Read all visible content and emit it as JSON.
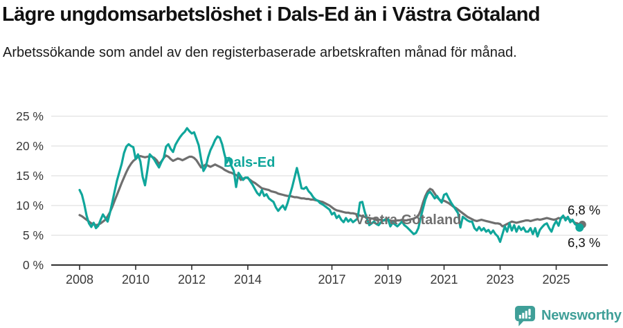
{
  "title": "Lägre ungdomsarbetslöshet i Dals-Ed än i Västra Götaland",
  "subtitle": "Arbetssökande som andel av den registerbaserade arbetskraften månad för månad.",
  "y_axis": {
    "values": [
      0,
      5,
      10,
      15,
      20,
      25
    ],
    "labels": [
      "0 %",
      "5 %",
      "10 %",
      "15 %",
      "20 %",
      "25 %"
    ]
  },
  "x_axis": {
    "years": [
      2008,
      2010,
      2012,
      2014,
      2017,
      2019,
      2021,
      2023,
      2025
    ],
    "labels": [
      "2008",
      "2010",
      "2012",
      "2014",
      "2017",
      "2019",
      "2021",
      "2023",
      "2025"
    ]
  },
  "annotations": {
    "series_label_dals_ed": "Dals-Ed",
    "series_label_vastra_gotaland": "Västra Götaland",
    "end_value_vastra_gotaland": "6,8 %",
    "end_value_dals_ed": "6,3 %"
  },
  "footer": {
    "brand": "Newsworthy",
    "icon": "newsworthy-chart-bubble-icon"
  },
  "colors": {
    "teal_line": "#10a69b",
    "gray_line": "#6f6f6f",
    "gridline": "#d9d9d9",
    "axis": "#2e2e2e",
    "tick_text": "#383838",
    "annotation_text": "#111111",
    "brand_teal": "#3f9f98"
  },
  "chart_data": {
    "type": "line",
    "title": "Lägre ungdomsarbetslöshet i Dals-Ed än i Västra Götaland",
    "unit": "%",
    "frequency": "monthly",
    "start": "2008-01",
    "end": "2025-11",
    "ylim": [
      0,
      25
    ],
    "grid": true,
    "x_tick_years": [
      2008,
      2010,
      2012,
      2014,
      2017,
      2019,
      2021,
      2023,
      2025
    ],
    "series": [
      {
        "name": "Dals-Ed",
        "color": "#10a69b",
        "end_label": "6,3 %",
        "values": [
          12.6,
          11.8,
          10.2,
          8.3,
          7.0,
          6.4,
          7.1,
          6.2,
          6.6,
          7.6,
          8.5,
          7.9,
          7.3,
          8.8,
          10.6,
          12.4,
          14.2,
          15.6,
          17.0,
          18.8,
          19.9,
          20.3,
          20.0,
          19.8,
          17.8,
          18.6,
          17.4,
          14.8,
          13.4,
          15.9,
          18.6,
          18.2,
          17.7,
          17.0,
          16.4,
          17.3,
          18.0,
          19.9,
          20.3,
          19.5,
          19.0,
          20.2,
          20.9,
          21.5,
          22.0,
          22.4,
          23.0,
          22.5,
          22.1,
          22.3,
          21.2,
          20.1,
          17.8,
          15.8,
          16.5,
          18.1,
          19.3,
          20.1,
          21.0,
          21.6,
          21.4,
          20.3,
          18.6,
          17.2,
          18.0,
          16.6,
          15.8,
          13.1,
          15.5,
          14.9,
          14.3,
          14.7,
          14.7,
          14.1,
          13.5,
          12.8,
          12.1,
          11.7,
          12.6,
          11.6,
          11.9,
          11.2,
          10.9,
          10.6,
          9.7,
          9.1,
          9.6,
          10.0,
          9.3,
          10.4,
          11.8,
          13.1,
          14.7,
          16.3,
          14.7,
          12.9,
          12.8,
          13.1,
          12.4,
          12.0,
          11.4,
          11.0,
          10.8,
          10.4,
          10.2,
          9.9,
          9.6,
          9.3,
          8.5,
          8.8,
          7.9,
          8.3,
          7.6,
          7.2,
          7.9,
          7.3,
          7.7,
          7.2,
          7.5,
          7.8,
          10.5,
          10.6,
          9.0,
          7.8,
          6.7,
          7.0,
          7.3,
          6.9,
          6.7,
          7.2,
          7.5,
          7.7,
          7.7,
          6.5,
          7.1,
          6.8,
          6.5,
          6.9,
          7.3,
          6.7,
          6.4,
          6.0,
          5.6,
          5.2,
          5.4,
          6.2,
          8.0,
          9.5,
          11.0,
          12.0,
          12.3,
          11.8,
          11.2,
          11.6,
          11.0,
          10.5,
          11.8,
          12.0,
          11.2,
          10.5,
          9.9,
          9.3,
          8.7,
          6.3,
          8.1,
          7.8,
          7.5,
          7.3,
          7.3,
          6.2,
          5.8,
          6.4,
          5.8,
          6.2,
          5.6,
          5.9,
          5.3,
          5.8,
          5.2,
          4.8,
          3.9,
          5.2,
          6.5,
          5.6,
          7.0,
          5.8,
          6.7,
          5.6,
          6.5,
          5.9,
          6.3,
          5.6,
          5.6,
          6.2,
          5.2,
          6.2,
          4.8,
          5.9,
          6.4,
          6.8,
          7.0,
          6.2,
          5.6,
          6.7,
          7.4,
          6.6,
          7.9,
          8.3,
          7.5,
          8.1,
          7.2,
          7.6,
          6.9,
          6.6,
          6.3
        ]
      },
      {
        "name": "Västra Götaland",
        "color": "#6f6f6f",
        "end_label": "6,8 %",
        "values": [
          8.4,
          8.2,
          7.9,
          7.6,
          7.3,
          7.0,
          6.9,
          6.7,
          6.8,
          7.0,
          7.3,
          7.6,
          8.2,
          8.9,
          9.8,
          10.8,
          11.8,
          12.8,
          13.8,
          14.7,
          15.6,
          16.4,
          17.0,
          17.5,
          17.8,
          18.2,
          18.3,
          18.2,
          18.1,
          18.2,
          18.3,
          18.2,
          18.0,
          17.6,
          17.0,
          17.4,
          18.0,
          18.4,
          18.2,
          17.8,
          17.5,
          17.7,
          17.9,
          17.8,
          17.6,
          17.8,
          18.0,
          18.2,
          18.2,
          18.0,
          17.6,
          17.0,
          16.4,
          16.6,
          16.9,
          16.7,
          16.5,
          16.7,
          16.9,
          16.7,
          16.5,
          16.3,
          16.0,
          15.8,
          15.6,
          15.5,
          15.3,
          15.1,
          14.9,
          14.3,
          14.5,
          14.7,
          14.6,
          14.3,
          14.0,
          13.8,
          13.5,
          13.2,
          12.9,
          12.8,
          12.7,
          12.6,
          12.4,
          12.3,
          12.2,
          12.0,
          11.9,
          11.8,
          11.7,
          11.6,
          11.6,
          11.5,
          11.4,
          11.4,
          11.3,
          11.2,
          11.2,
          11.1,
          11.1,
          11.0,
          11.0,
          10.9,
          10.8,
          10.7,
          10.6,
          10.4,
          10.2,
          10.0,
          9.7,
          9.4,
          9.2,
          9.1,
          9.0,
          8.9,
          8.8,
          8.8,
          8.7,
          8.7,
          8.6,
          8.5,
          8.3,
          8.2,
          8.1,
          8.0,
          7.9,
          7.8,
          7.8,
          7.7,
          7.6,
          7.6,
          7.5,
          7.5,
          7.6,
          7.5,
          7.4,
          7.4,
          7.5,
          7.5,
          7.6,
          7.5,
          7.5,
          7.6,
          7.7,
          7.8,
          8.0,
          8.3,
          9.2,
          10.5,
          11.6,
          12.4,
          12.8,
          12.6,
          12.0,
          11.4,
          11.0,
          10.8,
          10.8,
          10.6,
          10.4,
          10.1,
          9.8,
          9.6,
          9.3,
          9.0,
          8.7,
          8.4,
          8.1,
          7.9,
          7.7,
          7.5,
          7.4,
          7.5,
          7.6,
          7.5,
          7.4,
          7.3,
          7.2,
          7.1,
          7.0,
          7.0,
          6.9,
          6.5,
          6.7,
          6.9,
          7.1,
          7.3,
          7.2,
          7.1,
          7.2,
          7.3,
          7.4,
          7.5,
          7.5,
          7.4,
          7.5,
          7.6,
          7.7,
          7.6,
          7.7,
          7.8,
          7.9,
          7.8,
          7.7,
          7.6,
          7.7,
          7.9,
          7.8,
          8.1,
          7.9,
          7.8,
          7.6,
          7.4,
          7.1,
          7.0,
          6.8
        ]
      }
    ]
  }
}
